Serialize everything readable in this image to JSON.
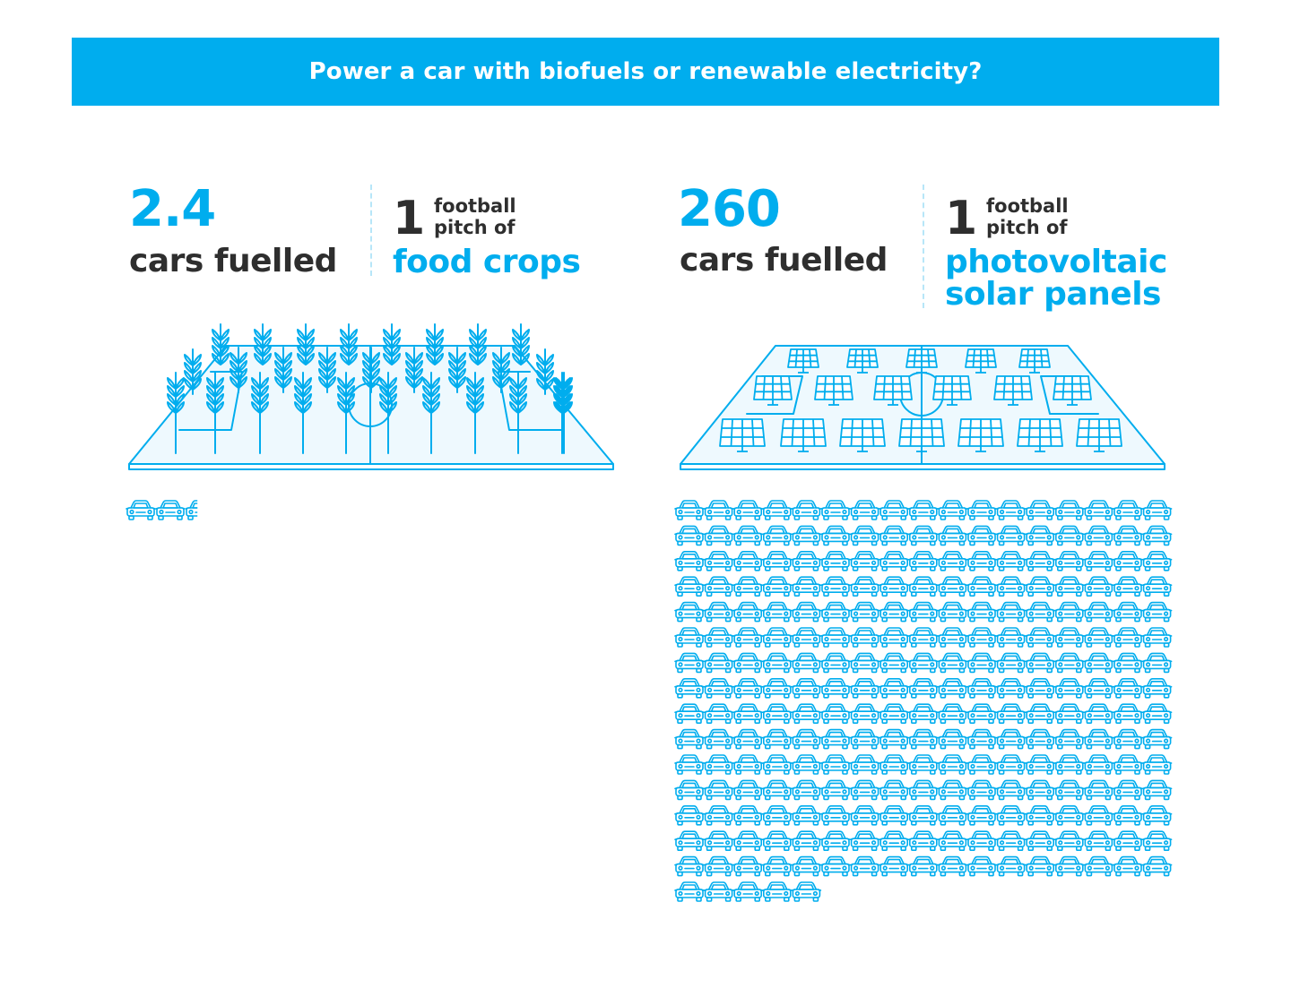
{
  "header": {
    "title": "Power a car with biofuels or renewable electricity?"
  },
  "biofuel": {
    "value": "2.4",
    "value_label": "cars fuelled",
    "pitch_count": "1",
    "pitch_line1": "football",
    "pitch_line2": "pitch of",
    "pitch_type": "food crops",
    "cars_fuelled": 2.4
  },
  "solar": {
    "value": "260",
    "value_label": "cars fuelled",
    "pitch_count": "1",
    "pitch_line1": "football",
    "pitch_line2": "pitch of",
    "pitch_type_line1": "photovoltaic",
    "pitch_type_line2": "solar panels",
    "cars_fuelled": 260
  },
  "icons": {
    "car": "car-icon",
    "wheat": "wheat-icon",
    "solar_panel": "solar-panel-icon",
    "field": "football-pitch-icon"
  },
  "colors": {
    "accent": "#00ADEE",
    "text": "#2e2e2e",
    "field_fill": "#eef9fe"
  }
}
